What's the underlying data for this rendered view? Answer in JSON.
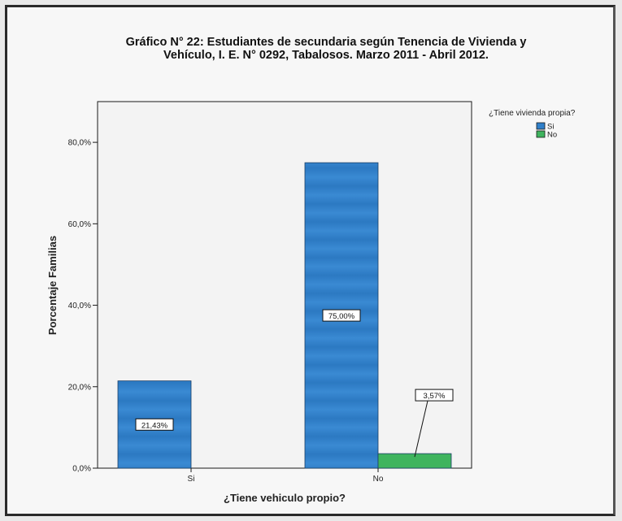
{
  "chart_data": {
    "type": "bar",
    "title": "Gráfico N° 22: Estudiantes de secundaria según Tenencia de Vivienda y Vehículo,  I. E. N° 0292, Tabalosos. Marzo 2011 - Abril 2012.",
    "title_lines": [
      "Gráfico N° 22: Estudiantes de secundaria según Tenencia de Vivienda y",
      "Vehículo,  I. E. N° 0292, Tabalosos. Marzo 2011 - Abril 2012."
    ],
    "xlabel": "¿Tiene vehiculo propio?",
    "ylabel": "Porcentaje Familias",
    "categories": [
      "Si",
      "No"
    ],
    "series": [
      {
        "name": "Si",
        "color": "#2f7fc9",
        "values": [
          21.43,
          75.0
        ],
        "labels": [
          "21,43%",
          "75,00%"
        ]
      },
      {
        "name": "No",
        "color": "#3fb45e",
        "values": [
          null,
          3.57
        ],
        "labels": [
          null,
          "3,57%"
        ]
      }
    ],
    "ylim": [
      0,
      90
    ],
    "yticks": [
      0,
      20,
      40,
      60,
      80
    ],
    "ytick_labels": [
      "0,0%",
      "20,0%",
      "40,0%",
      "60,0%",
      "80,0%"
    ],
    "legend_title": "¿Tiene vivienda propia?",
    "legend_position": "top-right",
    "grid": false
  }
}
